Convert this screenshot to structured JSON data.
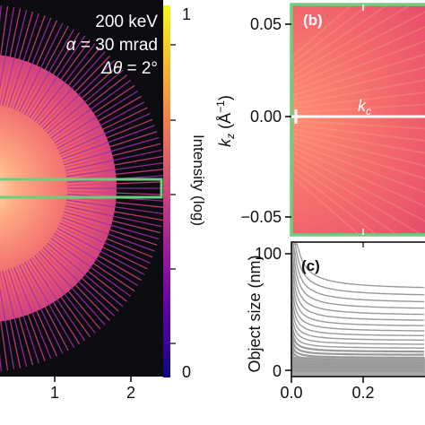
{
  "panel_a": {
    "params": {
      "energy": "200 keV",
      "alpha_symbol": "α",
      "alpha_value": " = 30 mrad",
      "dtheta_symbol": "Δθ",
      "dtheta_value": " = 2°"
    },
    "x_ticks": [
      "1",
      "2"
    ],
    "ray_count": 180
  },
  "colorbar": {
    "label": "Intensity (log)",
    "tick_top": "1",
    "tick_bottom": "0",
    "colors": [
      "#0d0887",
      "#5c01a6",
      "#9c179e",
      "#cc4778",
      "#ed7953",
      "#fdb42f",
      "#f0f921"
    ]
  },
  "panel_b": {
    "label": "(b)",
    "y_axis_label": "k",
    "y_axis_label_sub": "z",
    "y_axis_units": " (Å",
    "y_axis_units_sup": "−1",
    "y_axis_units_close": ")",
    "y_ticks": [
      "0.05",
      "0.00",
      "−0.05"
    ],
    "line_label": "k",
    "line_label_sub": "c",
    "box_color": "#69d07d"
  },
  "panel_c": {
    "label": "(c)",
    "y_axis_label": "Object size (nm)",
    "y_ticks": [
      "100",
      "0"
    ],
    "x_ticks": [
      "0.0",
      "0.2"
    ]
  },
  "chart_data": [
    {
      "type": "heatmap",
      "description_panel": "a",
      "colorbar_range": [
        0,
        1
      ],
      "colorbar_label": "Intensity (log)",
      "x_ticks": [
        1,
        2
      ],
      "annotations": [
        "200 keV",
        "α = 30 mrad",
        "Δθ = 2°"
      ]
    },
    {
      "type": "heatmap",
      "description_panel": "b",
      "y_ticks": [
        0.05,
        0.0,
        -0.05
      ],
      "ylabel": "k_z (Å^-1)",
      "annotations": [
        "k_c"
      ]
    },
    {
      "type": "line",
      "description_panel": "c",
      "ylabel": "Object size (nm)",
      "y_ticks": [
        0,
        100
      ],
      "x_ticks": [
        0.0,
        0.2
      ],
      "ylim": [
        0,
        100
      ]
    }
  ]
}
